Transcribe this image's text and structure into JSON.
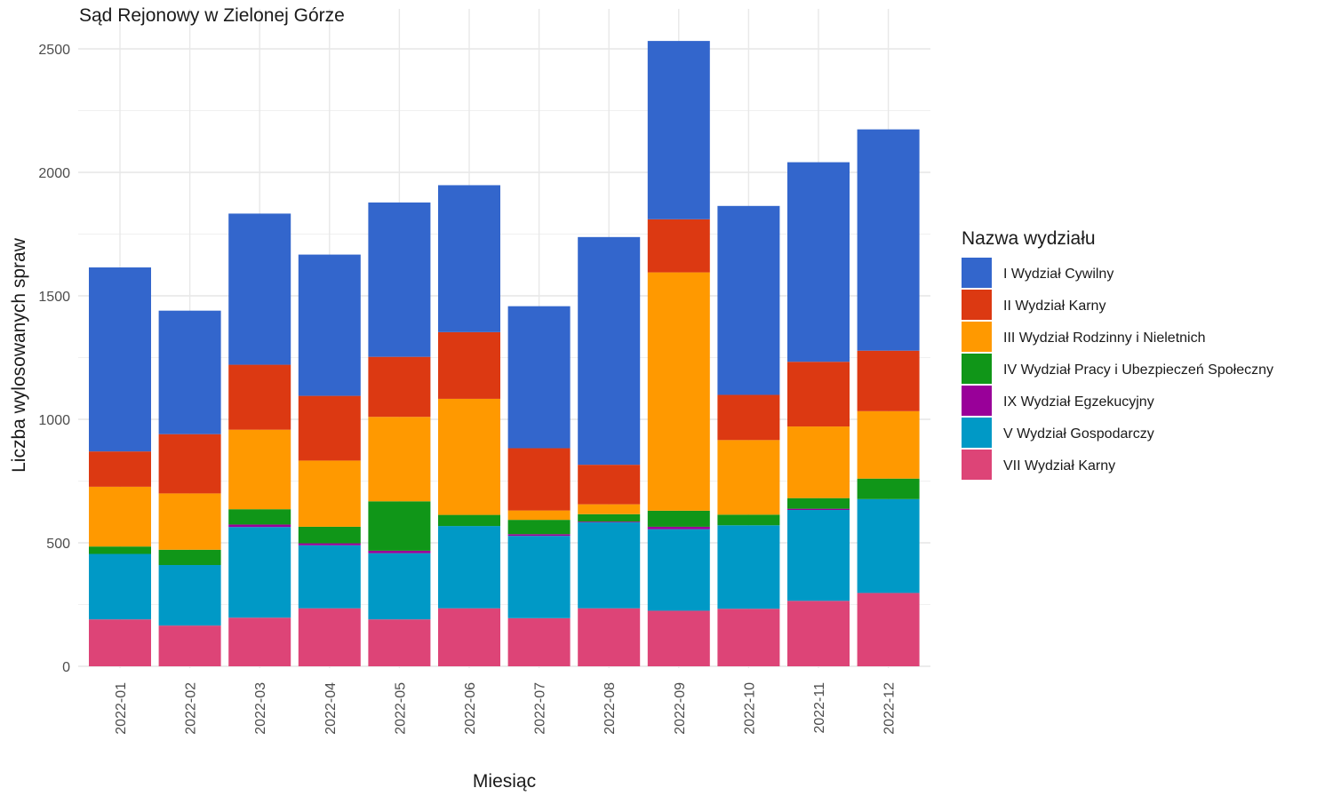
{
  "chart_data": {
    "type": "bar",
    "stacked": true,
    "title": "Sąd Rejonowy w Zielonej Górze",
    "xlabel": "Miesiąc",
    "ylabel": "Liczba wylosowanych spraw",
    "ylim": [
      0,
      2600
    ],
    "yticks": [
      0,
      500,
      1000,
      1500,
      2000,
      2500
    ],
    "grid": true,
    "legend": {
      "title": "Nazwa wydziału",
      "position": "right"
    },
    "categories": [
      "2022-01",
      "2022-02",
      "2022-03",
      "2022-04",
      "2022-05",
      "2022-06",
      "2022-07",
      "2022-08",
      "2022-09",
      "2022-10",
      "2022-11",
      "2022-12"
    ],
    "series": [
      {
        "name": "VII Wydział Karny",
        "color": "#DD4477",
        "values": [
          190,
          165,
          197,
          235,
          190,
          235,
          195,
          235,
          225,
          233,
          265,
          297
        ]
      },
      {
        "name": "V Wydział Gospodarczy",
        "color": "#0099C6",
        "values": [
          265,
          245,
          367,
          255,
          268,
          333,
          333,
          348,
          330,
          338,
          368,
          380
        ]
      },
      {
        "name": "IX Wydział Egzekucyjny",
        "color": "#990099",
        "values": [
          0,
          0,
          10,
          8,
          10,
          0,
          7,
          3,
          10,
          0,
          5,
          0
        ]
      },
      {
        "name": "IV Wydział Pracy i Ubezpieczeń Społeczny",
        "color": "#109618",
        "values": [
          30,
          62,
          62,
          67,
          200,
          45,
          58,
          30,
          65,
          43,
          43,
          83
        ]
      },
      {
        "name": "III Wydział Rodzinny i Nieletnich",
        "color": "#FF9900",
        "values": [
          242,
          228,
          322,
          268,
          342,
          470,
          38,
          40,
          965,
          302,
          290,
          273
        ]
      },
      {
        "name": "II Wydział Karny",
        "color": "#DC3912",
        "values": [
          143,
          240,
          263,
          262,
          243,
          270,
          252,
          160,
          215,
          183,
          262,
          245
        ]
      },
      {
        "name": "I Wydział Cywilny",
        "color": "#3366CC",
        "values": [
          745,
          500,
          612,
          572,
          625,
          595,
          575,
          922,
          722,
          765,
          808,
          896
        ]
      }
    ],
    "legend_order": [
      "I Wydział Cywilny",
      "II Wydział Karny",
      "III Wydział Rodzinny i Nieletnich",
      "IV Wydział Pracy i Ubezpieczeń Społeczny",
      "IX Wydział Egzekucyjny",
      "V Wydział Gospodarczy",
      "VII Wydział Karny"
    ]
  }
}
